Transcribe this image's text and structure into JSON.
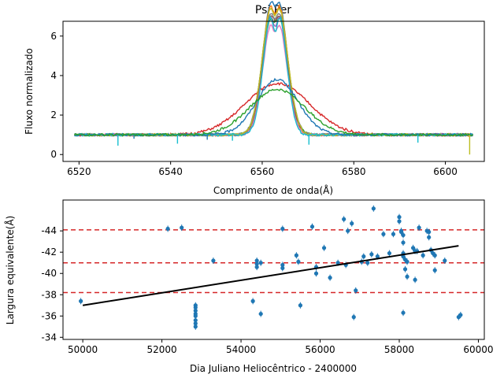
{
  "chart_data": [
    {
      "type": "line",
      "title": "Psi Per",
      "xlabel": "Comprimento de onda(Å)",
      "ylabel": "Fluxo normalizado",
      "xlim": [
        6516.5,
        6608.5
      ],
      "ylim": [
        -0.35,
        6.75
      ],
      "xticks": [
        "6520",
        "6540",
        "6560",
        "6580",
        "6600"
      ],
      "xtick_values": [
        6520,
        6540,
        6560,
        6580,
        6600
      ],
      "yticks": [
        "0",
        "2",
        "4",
        "6"
      ],
      "ytick_values": [
        0,
        2,
        4,
        6
      ],
      "grid": false,
      "series": [
        {
          "color": "#1f77b4",
          "profile": "double",
          "peak": 6.3,
          "width": 2.6,
          "sep": 2.0,
          "dip": 0.9
        },
        {
          "color": "#ff7f0e",
          "profile": "double",
          "peak": 6.4,
          "width": 2.5,
          "sep": 2.2,
          "dip": 1.1
        },
        {
          "color": "#2ca02c",
          "profile": "double",
          "peak": 5.7,
          "width": 2.7,
          "sep": 2.2,
          "dip": 0.8
        },
        {
          "color": "#d62728",
          "profile": "single",
          "peak": 3.6,
          "width": 7.0
        },
        {
          "color": "#9467bd",
          "profile": "double",
          "peak": 6.0,
          "width": 2.4,
          "sep": 2.1,
          "dip": 1.2
        },
        {
          "color": "#8c564b",
          "profile": "double",
          "peak": 5.8,
          "width": 2.6,
          "sep": 2.0,
          "dip": 0.9
        },
        {
          "color": "#e377c2",
          "profile": "double",
          "peak": 5.5,
          "width": 2.5,
          "sep": 2.0,
          "dip": 1.0
        },
        {
          "color": "#7f7f7f",
          "profile": "double",
          "peak": 5.9,
          "width": 2.7,
          "sep": 2.1,
          "dip": 1.0
        },
        {
          "color": "#bcbd22",
          "profile": "double",
          "peak": 6.2,
          "width": 2.6,
          "sep": 2.2,
          "dip": 1.0
        },
        {
          "color": "#17becf",
          "profile": "double",
          "peak": 6.1,
          "width": 2.3,
          "sep": 2.0,
          "dip": 1.6
        },
        {
          "color": "#1f77b4",
          "profile": "single",
          "peak": 3.8,
          "width": 4.5
        },
        {
          "color": "#2ca02c",
          "profile": "single",
          "peak": 3.3,
          "width": 6.0
        }
      ]
    },
    {
      "type": "scatter",
      "xlabel": "Dia Juliano Heliocêntrico - 2400000",
      "ylabel": "Largura equivalente(Å)",
      "xlim": [
        49500,
        60150
      ],
      "ylim": [
        -33.8,
        -46.9
      ],
      "inverted_y": true,
      "xticks": [
        "50000",
        "52000",
        "54000",
        "56000",
        "58000",
        "60000"
      ],
      "xtick_values": [
        50000,
        52000,
        54000,
        56000,
        58000,
        60000
      ],
      "yticks": [
        "-34",
        "-36",
        "-38",
        "-40",
        "-42",
        "-44"
      ],
      "ytick_values": [
        -34,
        -36,
        -38,
        -40,
        -42,
        -44
      ],
      "hlines": [
        -44.1,
        -41.0,
        -38.2
      ],
      "fit_line": {
        "x": [
          50000,
          59500
        ],
        "y": [
          -37.0,
          -42.6
        ]
      },
      "points": [
        [
          49950,
          -37.4
        ],
        [
          52150,
          -44.2
        ],
        [
          52500,
          -44.3
        ],
        [
          52850,
          -37.0
        ],
        [
          52850,
          -36.8
        ],
        [
          52850,
          -36.5
        ],
        [
          52850,
          -36.2
        ],
        [
          52850,
          -36.0
        ],
        [
          52850,
          -35.6
        ],
        [
          52850,
          -35.3
        ],
        [
          52850,
          -35.0
        ],
        [
          53300,
          -41.2
        ],
        [
          54300,
          -37.4
        ],
        [
          54400,
          -41.2
        ],
        [
          54400,
          -40.9
        ],
        [
          54400,
          -40.6
        ],
        [
          54500,
          -41.0
        ],
        [
          54500,
          -36.2
        ],
        [
          55050,
          -44.2
        ],
        [
          55050,
          -40.8
        ],
        [
          55050,
          -40.5
        ],
        [
          55400,
          -41.7
        ],
        [
          55450,
          -41.1
        ],
        [
          55500,
          -37.0
        ],
        [
          55800,
          -44.4
        ],
        [
          55900,
          -40.6
        ],
        [
          55900,
          -40.0
        ],
        [
          56100,
          -42.4
        ],
        [
          56250,
          -39.6
        ],
        [
          56450,
          -41.0
        ],
        [
          56600,
          -45.1
        ],
        [
          56650,
          -40.8
        ],
        [
          56700,
          -44.0
        ],
        [
          56800,
          -44.7
        ],
        [
          56850,
          -35.9
        ],
        [
          56900,
          -38.4
        ],
        [
          57050,
          -41.1
        ],
        [
          57100,
          -41.6
        ],
        [
          57200,
          -41.0
        ],
        [
          57300,
          -41.8
        ],
        [
          57350,
          -46.1
        ],
        [
          57450,
          -41.6
        ],
        [
          57600,
          -43.7
        ],
        [
          57750,
          -41.9
        ],
        [
          57850,
          -43.7
        ],
        [
          58000,
          -45.3
        ],
        [
          58000,
          -44.9
        ],
        [
          58050,
          -44.0
        ],
        [
          58050,
          -43.9
        ],
        [
          58100,
          -43.6
        ],
        [
          58100,
          -42.9
        ],
        [
          58100,
          -41.9
        ],
        [
          58100,
          -41.6
        ],
        [
          58150,
          -41.3
        ],
        [
          58150,
          -40.4
        ],
        [
          58100,
          -36.3
        ],
        [
          58200,
          -41.1
        ],
        [
          58200,
          -39.7
        ],
        [
          58350,
          -42.4
        ],
        [
          58400,
          -42.1
        ],
        [
          58400,
          -39.4
        ],
        [
          58450,
          -42.1
        ],
        [
          58500,
          -44.3
        ],
        [
          58600,
          -41.7
        ],
        [
          58700,
          -44.0
        ],
        [
          58750,
          -43.9
        ],
        [
          58750,
          -43.4
        ],
        [
          58800,
          -42.2
        ],
        [
          58850,
          -41.9
        ],
        [
          58900,
          -40.3
        ],
        [
          58900,
          -41.7
        ],
        [
          59150,
          -41.2
        ],
        [
          59500,
          -35.9
        ],
        [
          59550,
          -36.1
        ]
      ]
    }
  ]
}
